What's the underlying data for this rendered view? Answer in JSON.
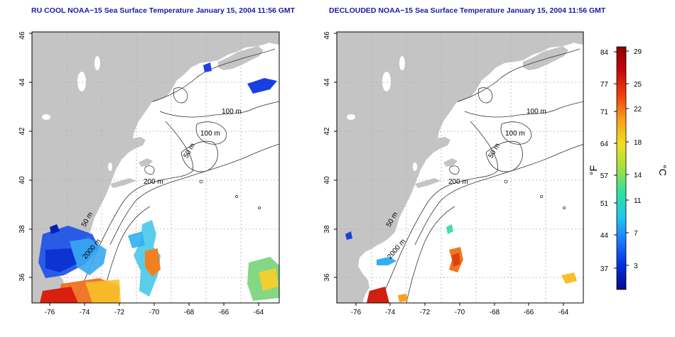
{
  "maps": [
    {
      "title": "RU COOL NOAA−15 Sea Surface Temperature January 15, 2004 11:56 GMT",
      "x_ticks": [
        "-76",
        "-74",
        "-72",
        "-70",
        "-68",
        "-66",
        "-64"
      ],
      "y_ticks": [
        "36",
        "38",
        "40",
        "42",
        "44",
        "46"
      ],
      "contour_labels": [
        "100 m",
        "100 m",
        "50 m",
        "200 m",
        "50 m",
        "2000 m"
      ]
    },
    {
      "title": "DECLOUDED NOAA−15 Sea Surface Temperature January 15, 2004 11:56 GMT",
      "x_ticks": [
        "-76",
        "-74",
        "-72",
        "-70",
        "-68",
        "-66",
        "-64"
      ],
      "y_ticks": [
        "36",
        "38",
        "40",
        "42",
        "44",
        "46"
      ],
      "contour_labels": [
        "100 m",
        "100 m",
        "50 m",
        "200 m",
        "50 m",
        "2000 m"
      ]
    }
  ],
  "colorbar": {
    "f_ticks": [
      "84",
      "77",
      "71",
      "64",
      "57",
      "51",
      "44",
      "37"
    ],
    "c_ticks": [
      "29",
      "25",
      "22",
      "18",
      "14",
      "11",
      "7",
      "3"
    ],
    "f_label": "°F",
    "c_label": "°C",
    "colors": [
      "#08088a",
      "#0030e0",
      "#1a78ff",
      "#20c8e8",
      "#30e0a0",
      "#a0e040",
      "#f0e020",
      "#f8a018",
      "#f04010",
      "#c80808",
      "#8a0000"
    ]
  },
  "colors": {
    "land": "#c4c4c4",
    "water": "#ffffff",
    "title": "#1a1aa0",
    "grid": "#b0b0b0"
  }
}
